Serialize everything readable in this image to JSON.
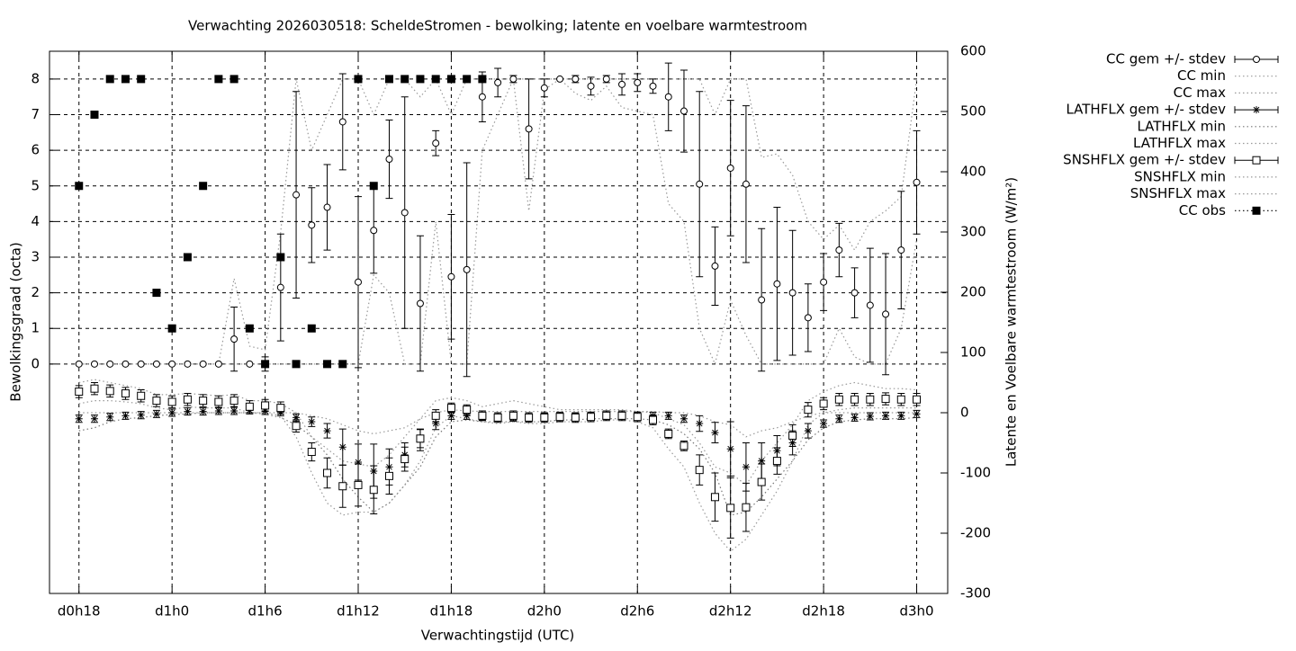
{
  "chart_data": {
    "type": "line",
    "title": "Verwachting 2026030518: ScheldeStromen - bewolking; latente en voelbare warmtestroom",
    "xlabel": "Verwachtingstijd (UTC)",
    "ylabel": "Bewolkingsgraad (octa)",
    "y2label": "Latente en Voelbare warmtestroom (W/m²)",
    "x": [
      18,
      19,
      20,
      21,
      22,
      23,
      24,
      25,
      26,
      27,
      28,
      29,
      30,
      31,
      32,
      33,
      34,
      35,
      36,
      37,
      38,
      39,
      40,
      41,
      42,
      43,
      44,
      45,
      46,
      47,
      48,
      49,
      50,
      51,
      52,
      53,
      54,
      55,
      56,
      57,
      58,
      59,
      60,
      61,
      62,
      63,
      64,
      65,
      66,
      67,
      68,
      69,
      70,
      71,
      72
    ],
    "xlim": [
      16.1,
      74
    ],
    "xticks": [
      {
        "value": 18,
        "label": "d0h18"
      },
      {
        "value": 24,
        "label": "d1h0"
      },
      {
        "value": 30,
        "label": "d1h6"
      },
      {
        "value": 36,
        "label": "d1h12"
      },
      {
        "value": 42,
        "label": "d1h18"
      },
      {
        "value": 48,
        "label": "d2h0"
      },
      {
        "value": 54,
        "label": "d2h6"
      },
      {
        "value": 60,
        "label": "d2h12"
      },
      {
        "value": 66,
        "label": "d2h18"
      },
      {
        "value": 72,
        "label": "d3h0"
      }
    ],
    "ylim": [
      -6.44,
      8.78
    ],
    "yticks": [
      0,
      1,
      2,
      3,
      4,
      5,
      6,
      7,
      8
    ],
    "y2lim": [
      -300,
      600
    ],
    "y2ticks": [
      -300,
      -200,
      -100,
      0,
      100,
      200,
      300,
      400,
      500,
      600
    ],
    "grid": true,
    "legend": "outside-right",
    "series": [
      {
        "name": "CC gem +/- stdev",
        "color": "#000000",
        "marker": "circle",
        "line": null,
        "values": [
          0,
          0,
          0,
          0,
          0,
          0,
          0,
          0,
          0,
          0,
          0.7,
          0,
          0,
          2.15,
          4.75,
          3.9,
          4.4,
          6.8,
          2.3,
          3.75,
          5.75,
          4.25,
          1.7,
          6.2,
          2.45,
          2.65,
          7.5,
          7.9,
          8,
          6.6,
          7.75,
          8,
          8,
          7.8,
          8,
          7.85,
          7.9,
          7.8,
          7.5,
          7.1,
          5.05,
          2.75,
          5.5,
          5.05,
          1.8,
          2.25,
          2.0,
          1.3,
          2.3,
          3.2,
          2.0,
          1.65,
          1.4,
          3.2,
          5.1
        ],
        "errors": [
          0,
          0,
          0,
          0,
          0,
          0,
          0,
          0,
          0,
          0,
          0.9,
          0,
          0.2,
          1.5,
          2.9,
          1.05,
          1.2,
          1.35,
          2.4,
          1.2,
          1.1,
          3.25,
          1.9,
          0.35,
          1.75,
          3.0,
          0.7,
          0.4,
          0.1,
          1.4,
          0.25,
          0,
          0.1,
          0.25,
          0.1,
          0.3,
          0.25,
          0.2,
          0.95,
          1.15,
          2.6,
          1.1,
          1.9,
          2.2,
          2.0,
          2.15,
          1.75,
          0.95,
          0.8,
          0.75,
          0.7,
          1.6,
          1.7,
          1.65,
          1.45
        ]
      },
      {
        "name": "CC min",
        "color": "#999999",
        "marker": null,
        "line": "dotted",
        "values": [
          0,
          0,
          0,
          0,
          0,
          0,
          0,
          0,
          0,
          0,
          0,
          0,
          0,
          0,
          0,
          0,
          0,
          0,
          0,
          2.5,
          2.0,
          0,
          0,
          4.0,
          0,
          0,
          6,
          7,
          8,
          4.3,
          7.7,
          8,
          7.6,
          7.4,
          7.8,
          7.2,
          7.1,
          7.0,
          4.5,
          4.0,
          1.0,
          0,
          1.8,
          0.8,
          0,
          0,
          0,
          0,
          0,
          1.0,
          0.2,
          0,
          0,
          1.0,
          3.5
        ]
      },
      {
        "name": "CC max",
        "color": "#999999",
        "marker": null,
        "line": "dotted",
        "values": [
          0,
          0,
          0,
          0,
          0,
          0,
          0,
          0,
          0,
          0,
          2.4,
          0.5,
          0.4,
          3.7,
          8,
          6,
          7,
          8,
          8,
          7,
          8,
          8,
          7.5,
          8,
          7,
          8,
          8,
          8,
          8,
          8,
          8,
          8,
          8,
          8,
          8,
          8,
          8,
          8,
          8,
          8,
          8,
          7,
          8,
          8,
          5.8,
          5.9,
          5.3,
          4,
          3.5,
          3.9,
          3.2,
          4,
          4.3,
          4.7,
          8
        ]
      },
      {
        "name": "LATHFLX gem +/- stdev",
        "color": "#000000",
        "marker": "star",
        "line": null,
        "axis": "y2",
        "values": [
          -10,
          -10,
          -7,
          -5,
          -4,
          -2,
          0,
          2,
          2,
          3,
          3,
          4,
          3,
          1,
          -8,
          -15,
          -30,
          -57,
          -82,
          -97,
          -90,
          -70,
          -45,
          -18,
          -5,
          -5,
          -6,
          -8,
          -8,
          -8,
          -7,
          -7,
          -7,
          -5,
          -5,
          -5,
          -5,
          -5,
          -5,
          -10,
          -18,
          -33,
          -60,
          -90,
          -80,
          -63,
          -50,
          -30,
          -18,
          -10,
          -8,
          -6,
          -5,
          -5,
          -2
        ],
        "errors": [
          6,
          6,
          6,
          6,
          6,
          6,
          6,
          6,
          6,
          6,
          6,
          6,
          6,
          6,
          6,
          8,
          12,
          30,
          30,
          45,
          30,
          20,
          18,
          10,
          6,
          6,
          6,
          6,
          6,
          6,
          6,
          6,
          6,
          6,
          6,
          6,
          6,
          6,
          6,
          6,
          13,
          17,
          45,
          40,
          30,
          25,
          20,
          12,
          6,
          6,
          6,
          6,
          6,
          6,
          6
        ]
      },
      {
        "name": "LATHFLX min",
        "color": "#777777",
        "marker": null,
        "line": "dotted",
        "axis": "y2",
        "values": [
          -30,
          -25,
          -15,
          -10,
          -8,
          -5,
          -3,
          -2,
          0,
          0,
          0,
          0,
          -2,
          -8,
          -20,
          -40,
          -70,
          -110,
          -140,
          -165,
          -150,
          -120,
          -90,
          -40,
          -15,
          -12,
          -15,
          -15,
          -15,
          -15,
          -15,
          -12,
          -12,
          -10,
          -10,
          -10,
          -10,
          -12,
          -20,
          -35,
          -60,
          -100,
          -170,
          -165,
          -140,
          -110,
          -80,
          -45,
          -25,
          -15,
          -12,
          -10,
          -10,
          -10,
          -8
        ]
      },
      {
        "name": "LATHFLX max",
        "color": "#999999",
        "marker": null,
        "line": "dotted",
        "axis": "y2",
        "values": [
          0,
          0,
          0,
          0,
          0,
          0,
          0,
          0,
          0,
          0,
          0,
          0,
          0,
          0,
          0,
          -5,
          -10,
          -20,
          -30,
          -35,
          -30,
          -25,
          -10,
          0,
          5,
          3,
          2,
          2,
          2,
          2,
          2,
          2,
          2,
          2,
          2,
          2,
          2,
          2,
          0,
          0,
          -5,
          -15,
          -20,
          -40,
          -30,
          -25,
          -15,
          -5,
          0,
          0,
          0,
          0,
          0,
          0,
          0
        ]
      },
      {
        "name": "SNSHFLX gem +/- stdev",
        "color": "#000000",
        "marker": "square",
        "line": null,
        "axis": "y2",
        "values": [
          35,
          40,
          36,
          32,
          28,
          20,
          18,
          22,
          20,
          18,
          20,
          10,
          12,
          8,
          -22,
          -65,
          -100,
          -122,
          -120,
          -128,
          -105,
          -77,
          -43,
          -5,
          8,
          5,
          -5,
          -8,
          -5,
          -8,
          -8,
          -7,
          -8,
          -7,
          -5,
          -5,
          -7,
          -12,
          -35,
          -55,
          -95,
          -140,
          -158,
          -157,
          -115,
          -80,
          -38,
          5,
          15,
          22,
          22,
          22,
          23,
          22,
          22
        ],
        "errors": [
          10,
          10,
          10,
          10,
          10,
          10,
          10,
          10,
          10,
          10,
          10,
          10,
          10,
          10,
          10,
          15,
          25,
          35,
          35,
          40,
          30,
          20,
          15,
          10,
          8,
          8,
          8,
          8,
          8,
          8,
          8,
          8,
          8,
          8,
          8,
          8,
          8,
          8,
          8,
          8,
          25,
          40,
          50,
          40,
          30,
          22,
          18,
          12,
          10,
          10,
          10,
          10,
          10,
          10,
          10
        ]
      },
      {
        "name": "SNSHFLX min",
        "color": "#999999",
        "marker": null,
        "line": "dotted",
        "axis": "y2",
        "values": [
          15,
          20,
          20,
          18,
          15,
          8,
          5,
          10,
          8,
          8,
          8,
          0,
          0,
          -5,
          -40,
          -100,
          -150,
          -170,
          -165,
          -165,
          -150,
          -120,
          -80,
          -25,
          -5,
          -10,
          -15,
          -18,
          -15,
          -18,
          -18,
          -15,
          -15,
          -15,
          -12,
          -12,
          -15,
          -25,
          -60,
          -90,
          -150,
          -200,
          -230,
          -210,
          -170,
          -130,
          -80,
          -20,
          0,
          5,
          8,
          8,
          8,
          8,
          8
        ]
      },
      {
        "name": "SNSHFLX max",
        "color": "#999999",
        "marker": null,
        "line": "dotted",
        "axis": "y2",
        "values": [
          50,
          55,
          50,
          45,
          40,
          30,
          30,
          32,
          30,
          28,
          30,
          20,
          20,
          15,
          0,
          -40,
          -60,
          -80,
          -85,
          -90,
          -70,
          -40,
          -10,
          20,
          25,
          20,
          10,
          15,
          20,
          15,
          10,
          5,
          5,
          5,
          5,
          5,
          2,
          0,
          -10,
          -20,
          -50,
          -90,
          -100,
          -120,
          -80,
          -50,
          -20,
          20,
          35,
          45,
          50,
          45,
          40,
          40,
          38
        ]
      },
      {
        "name": "CC obs",
        "color": "#000000",
        "marker": "filled-square",
        "line": null,
        "values": [
          5,
          7,
          8,
          8,
          8,
          2,
          1,
          3,
          5,
          8,
          8,
          1,
          0,
          3,
          0,
          1,
          0,
          0,
          8,
          5,
          8,
          8,
          8,
          8,
          8,
          8,
          8,
          null,
          null,
          null,
          null,
          null,
          null,
          null,
          null,
          null,
          null,
          null,
          null,
          null,
          null,
          null,
          null,
          null,
          null,
          null,
          null,
          null,
          null,
          null,
          null,
          null,
          null,
          null,
          null
        ]
      }
    ]
  }
}
